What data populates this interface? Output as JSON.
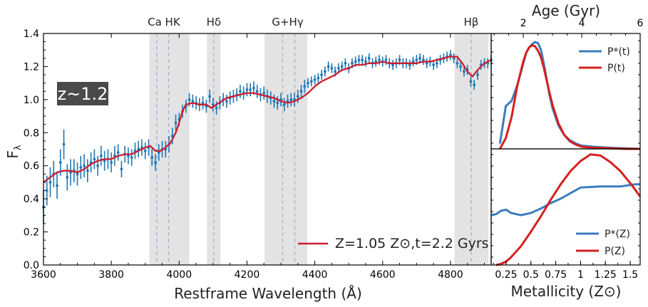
{
  "chart_data": [
    {
      "type": "line",
      "panel": "spectrum",
      "xlabel": "Restframe Wavelength (Å)",
      "ylabel": "F",
      "ylabel_sub": "λ",
      "xlim": [
        3600,
        4920
      ],
      "ylim": [
        0.0,
        1.4
      ],
      "xticks": [
        3600,
        3800,
        4000,
        4200,
        4400,
        4600,
        4800
      ],
      "yticks": [
        0.0,
        0.2,
        0.4,
        0.6,
        0.8,
        1.0,
        1.2,
        1.4
      ],
      "badge": "z~1.2",
      "legend": [
        {
          "label": "Z=1.05 Z⊙,t=2.2 Gyrs",
          "color": "#cc1f2f"
        }
      ],
      "line_labels": [
        {
          "text": "Ca HK",
          "x": 3955
        },
        {
          "text": "Hδ",
          "x": 4102
        },
        {
          "text": "G+Hγ",
          "x": 4320
        },
        {
          "text": "Hβ",
          "x": 4861
        }
      ],
      "shaded_bands": [
        [
          3912,
          3968
        ],
        [
          3968,
          4030
        ],
        [
          4082,
          4122
        ],
        [
          4252,
          4378
        ],
        [
          4812,
          4912
        ]
      ],
      "line_positions": [
        3934,
        3969,
        4102,
        4305,
        4341,
        4861
      ],
      "colors": {
        "data": "#1f77b4",
        "model": "#cc1f2f",
        "band": "#e3e3e3",
        "line": "#9fb3d1"
      },
      "series": [
        {
          "name": "data",
          "x": [
            3600,
            3610,
            3620,
            3630,
            3640,
            3650,
            3660,
            3670,
            3680,
            3690,
            3700,
            3710,
            3720,
            3730,
            3740,
            3750,
            3760,
            3770,
            3780,
            3790,
            3800,
            3810,
            3820,
            3830,
            3840,
            3850,
            3860,
            3870,
            3880,
            3890,
            3900,
            3910,
            3920,
            3930,
            3940,
            3950,
            3960,
            3970,
            3980,
            3990,
            4000,
            4010,
            4020,
            4030,
            4040,
            4050,
            4060,
            4070,
            4080,
            4090,
            4100,
            4110,
            4120,
            4130,
            4140,
            4150,
            4160,
            4170,
            4180,
            4190,
            4200,
            4210,
            4220,
            4230,
            4240,
            4250,
            4260,
            4270,
            4280,
            4290,
            4300,
            4310,
            4320,
            4330,
            4340,
            4350,
            4360,
            4370,
            4380,
            4390,
            4400,
            4410,
            4420,
            4430,
            4440,
            4450,
            4460,
            4470,
            4480,
            4490,
            4500,
            4510,
            4520,
            4530,
            4540,
            4550,
            4560,
            4570,
            4580,
            4590,
            4600,
            4610,
            4620,
            4630,
            4640,
            4650,
            4660,
            4670,
            4680,
            4690,
            4700,
            4710,
            4720,
            4730,
            4740,
            4750,
            4760,
            4770,
            4780,
            4790,
            4800,
            4810,
            4820,
            4830,
            4840,
            4850,
            4860,
            4870,
            4880,
            4890,
            4900,
            4910,
            4920
          ],
          "y": [
            0.35,
            0.45,
            0.5,
            0.55,
            0.48,
            0.62,
            0.73,
            0.53,
            0.56,
            0.57,
            0.55,
            0.59,
            0.6,
            0.57,
            0.62,
            0.64,
            0.6,
            0.66,
            0.63,
            0.64,
            0.62,
            0.66,
            0.68,
            0.58,
            0.67,
            0.66,
            0.65,
            0.69,
            0.7,
            0.71,
            0.69,
            0.71,
            0.65,
            0.62,
            0.68,
            0.7,
            0.7,
            0.73,
            0.78,
            0.86,
            0.88,
            0.93,
            0.96,
            1.0,
            0.99,
            0.98,
            0.97,
            0.98,
            0.96,
            1.02,
            0.97,
            0.95,
            0.98,
            1.0,
            0.99,
            1.01,
            1.02,
            1.03,
            1.05,
            1.04,
            1.06,
            1.06,
            1.07,
            1.05,
            1.03,
            1.04,
            1.02,
            1.01,
            0.99,
            0.98,
            1.0,
            0.97,
            0.99,
            1.0,
            1.0,
            1.02,
            1.05,
            1.08,
            1.1,
            1.11,
            1.12,
            1.13,
            1.15,
            1.17,
            1.2,
            1.19,
            1.17,
            1.19,
            1.2,
            1.22,
            1.19,
            1.22,
            1.23,
            1.24,
            1.24,
            1.23,
            1.25,
            1.22,
            1.23,
            1.24,
            1.23,
            1.24,
            1.22,
            1.21,
            1.22,
            1.24,
            1.22,
            1.22,
            1.21,
            1.23,
            1.24,
            1.25,
            1.24,
            1.22,
            1.23,
            1.21,
            1.22,
            1.24,
            1.25,
            1.26,
            1.27,
            1.25,
            1.22,
            1.2,
            1.17,
            1.18,
            1.11,
            1.09,
            1.15,
            1.21,
            1.22,
            1.22,
            1.24
          ],
          "err": [
            0.1,
            0.09,
            0.09,
            0.08,
            0.08,
            0.08,
            0.09,
            0.08,
            0.08,
            0.07,
            0.07,
            0.07,
            0.07,
            0.07,
            0.06,
            0.06,
            0.06,
            0.06,
            0.06,
            0.06,
            0.06,
            0.06,
            0.05,
            0.05,
            0.05,
            0.05,
            0.05,
            0.05,
            0.05,
            0.05,
            0.05,
            0.05,
            0.05,
            0.05,
            0.05,
            0.05,
            0.05,
            0.05,
            0.05,
            0.05,
            0.04,
            0.04,
            0.04,
            0.04,
            0.04,
            0.04,
            0.04,
            0.04,
            0.04,
            0.04,
            0.04,
            0.04,
            0.04,
            0.04,
            0.04,
            0.04,
            0.04,
            0.04,
            0.04,
            0.04,
            0.04,
            0.04,
            0.04,
            0.04,
            0.04,
            0.04,
            0.04,
            0.04,
            0.04,
            0.04,
            0.04,
            0.04,
            0.04,
            0.04,
            0.04,
            0.04,
            0.04,
            0.04,
            0.03,
            0.03,
            0.03,
            0.03,
            0.03,
            0.03,
            0.03,
            0.03,
            0.03,
            0.03,
            0.03,
            0.03,
            0.03,
            0.03,
            0.03,
            0.03,
            0.03,
            0.03,
            0.03,
            0.03,
            0.03,
            0.03,
            0.03,
            0.03,
            0.03,
            0.03,
            0.03,
            0.03,
            0.03,
            0.03,
            0.03,
            0.03,
            0.03,
            0.03,
            0.03,
            0.03,
            0.03,
            0.03,
            0.03,
            0.03,
            0.03,
            0.03,
            0.03,
            0.03,
            0.03,
            0.03,
            0.03,
            0.03,
            0.03,
            0.03,
            0.03,
            0.03,
            0.03,
            0.03,
            0.03
          ]
        },
        {
          "name": "Z=1.05 Z⊙,t=2.2 Gyrs",
          "x": [
            3600,
            3620,
            3640,
            3660,
            3680,
            3700,
            3720,
            3740,
            3760,
            3780,
            3800,
            3820,
            3840,
            3860,
            3880,
            3900,
            3915,
            3930,
            3945,
            3960,
            3975,
            3990,
            4000,
            4010,
            4020,
            4040,
            4060,
            4080,
            4095,
            4110,
            4125,
            4140,
            4160,
            4180,
            4200,
            4220,
            4240,
            4260,
            4280,
            4300,
            4320,
            4340,
            4360,
            4380,
            4400,
            4420,
            4440,
            4460,
            4480,
            4500,
            4520,
            4540,
            4560,
            4580,
            4600,
            4620,
            4640,
            4660,
            4680,
            4700,
            4720,
            4740,
            4760,
            4780,
            4800,
            4820,
            4835,
            4850,
            4865,
            4880,
            4900,
            4920
          ],
          "y": [
            0.5,
            0.53,
            0.56,
            0.57,
            0.57,
            0.56,
            0.58,
            0.61,
            0.63,
            0.64,
            0.64,
            0.66,
            0.67,
            0.67,
            0.69,
            0.71,
            0.72,
            0.69,
            0.69,
            0.71,
            0.74,
            0.8,
            0.86,
            0.93,
            0.97,
            0.98,
            0.97,
            0.97,
            0.95,
            0.97,
            0.99,
            1.01,
            1.02,
            1.03,
            1.04,
            1.04,
            1.03,
            1.02,
            1.01,
            0.99,
            0.98,
            0.99,
            1.01,
            1.04,
            1.08,
            1.11,
            1.13,
            1.15,
            1.18,
            1.19,
            1.21,
            1.21,
            1.22,
            1.22,
            1.23,
            1.22,
            1.22,
            1.22,
            1.22,
            1.22,
            1.23,
            1.23,
            1.24,
            1.25,
            1.26,
            1.26,
            1.22,
            1.17,
            1.14,
            1.18,
            1.22,
            1.24
          ]
        }
      ]
    },
    {
      "type": "line",
      "panel": "age",
      "xlabel": "Age (Gyr)",
      "xlim": [
        0.9,
        6.0
      ],
      "xticks": [
        2,
        4,
        6
      ],
      "series": [
        {
          "name": "P*(t)",
          "color": "#3a7dbd",
          "x": [
            1.2,
            1.4,
            1.6,
            1.8,
            2.0,
            2.1,
            2.2,
            2.3,
            2.4,
            2.5,
            2.6,
            2.7,
            2.8,
            2.9,
            3.0,
            3.2,
            3.4,
            3.6,
            3.8,
            4.0,
            4.4,
            5.0,
            5.5,
            6.0
          ],
          "y": [
            0.05,
            0.4,
            0.45,
            0.6,
            0.8,
            0.9,
            0.95,
            0.98,
            1.0,
            0.99,
            0.93,
            0.8,
            0.65,
            0.5,
            0.38,
            0.22,
            0.13,
            0.08,
            0.05,
            0.03,
            0.02,
            0.01,
            0.005,
            0.0
          ]
        },
        {
          "name": "P(t)",
          "color": "#d62020",
          "x": [
            1.2,
            1.4,
            1.6,
            1.8,
            2.0,
            2.1,
            2.2,
            2.3,
            2.4,
            2.5,
            2.6,
            2.7,
            2.8,
            2.9,
            3.0,
            3.2,
            3.4,
            3.6,
            3.8,
            4.0,
            4.4,
            5.0,
            5.5,
            6.0
          ],
          "y": [
            0.0,
            0.1,
            0.3,
            0.6,
            0.82,
            0.9,
            0.95,
            0.97,
            0.96,
            0.92,
            0.86,
            0.76,
            0.64,
            0.52,
            0.41,
            0.24,
            0.13,
            0.07,
            0.04,
            0.02,
            0.01,
            0.005,
            0.0,
            0.0
          ]
        }
      ]
    },
    {
      "type": "line",
      "panel": "metallicity",
      "xlabel": "Metallicity (Z⊙)",
      "xlim": [
        0.1,
        1.6
      ],
      "xticks": [
        0.25,
        0.5,
        0.75,
        1.0,
        1.25,
        1.5
      ],
      "xtick_labels": [
        "0.25",
        "0.5",
        "0.75",
        "1",
        "1.25",
        "1.5"
      ],
      "series": [
        {
          "name": "P*(Z)",
          "color": "#3a7dbd",
          "x": [
            0.1,
            0.15,
            0.2,
            0.25,
            0.3,
            0.4,
            0.5,
            0.6,
            0.7,
            0.8,
            0.9,
            1.0,
            1.2,
            1.4,
            1.55,
            1.6
          ],
          "y": [
            0.45,
            0.46,
            0.49,
            0.5,
            0.47,
            0.45,
            0.47,
            0.51,
            0.56,
            0.6,
            0.65,
            0.7,
            0.71,
            0.71,
            0.73,
            0.73
          ]
        },
        {
          "name": "P(Z)",
          "color": "#d62020",
          "x": [
            0.15,
            0.2,
            0.25,
            0.3,
            0.4,
            0.5,
            0.6,
            0.7,
            0.8,
            0.9,
            1.0,
            1.1,
            1.2,
            1.3,
            1.4,
            1.5,
            1.6
          ],
          "y": [
            0.0,
            0.01,
            0.03,
            0.07,
            0.17,
            0.3,
            0.44,
            0.59,
            0.73,
            0.85,
            0.94,
            1.0,
            0.99,
            0.93,
            0.85,
            0.74,
            0.62
          ]
        }
      ]
    }
  ]
}
